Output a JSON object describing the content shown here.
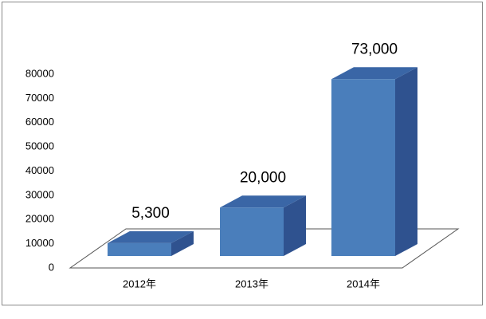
{
  "chart_data": {
    "type": "bar3d",
    "categories": [
      "2012年",
      "2013年",
      "2014年"
    ],
    "values": [
      5300,
      20000,
      73000
    ],
    "value_labels": [
      "5,300",
      "20,000",
      "73,000"
    ],
    "color": "#4a7ebb",
    "ylim": [
      0,
      80000
    ],
    "yticks": [
      0,
      10000,
      20000,
      30000,
      40000,
      50000,
      60000,
      70000,
      80000
    ],
    "grid": false
  }
}
